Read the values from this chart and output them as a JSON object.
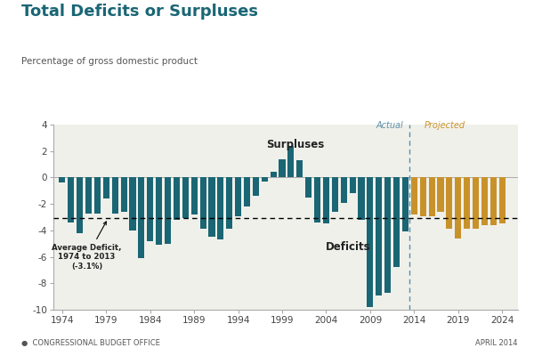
{
  "title": "Total Deficits or Surpluses",
  "subtitle": "Percentage of gross domestic product",
  "footer_left": "●  CONGRESSIONAL BUDGET OFFICE",
  "footer_right": "APRIL 2014",
  "avg_deficit": -3.1,
  "avg_deficit_label": "Average Deficit,\n1974 to 2013\n(-3.1%)",
  "split_year": 2014,
  "actual_label": "Actual",
  "projected_label": "Projected",
  "teal_color": "#1a6674",
  "gold_color": "#c8922a",
  "avg_line_color": "#000000",
  "split_line_color": "#5b8fa8",
  "title_color": "#1a6674",
  "text_color": "#333333",
  "subtitle_color": "#555555",
  "years": [
    1974,
    1975,
    1976,
    1977,
    1978,
    1979,
    1980,
    1981,
    1982,
    1983,
    1984,
    1985,
    1986,
    1987,
    1988,
    1989,
    1990,
    1991,
    1992,
    1993,
    1994,
    1995,
    1996,
    1997,
    1998,
    1999,
    2000,
    2001,
    2002,
    2003,
    2004,
    2005,
    2006,
    2007,
    2008,
    2009,
    2010,
    2011,
    2012,
    2013,
    2014,
    2015,
    2016,
    2017,
    2018,
    2019,
    2020,
    2021,
    2022,
    2023,
    2024
  ],
  "values": [
    -0.4,
    -3.4,
    -4.2,
    -2.7,
    -2.7,
    -1.6,
    -2.7,
    -2.6,
    -4.0,
    -6.1,
    -4.8,
    -5.1,
    -5.0,
    -3.2,
    -3.1,
    -2.8,
    -3.9,
    -4.5,
    -4.7,
    -3.9,
    -2.9,
    -2.2,
    -1.4,
    -0.3,
    0.4,
    1.4,
    2.4,
    1.3,
    -1.5,
    -3.4,
    -3.5,
    -2.6,
    -1.9,
    -1.2,
    -3.2,
    -9.8,
    -8.9,
    -8.7,
    -6.8,
    -4.1,
    -2.8,
    -2.9,
    -2.9,
    -2.6,
    -3.9,
    -4.6,
    -3.9,
    -3.9,
    -3.6,
    -3.6,
    -3.5
  ],
  "ylim": [
    -10,
    4
  ],
  "yticks": [
    -10,
    -8,
    -6,
    -4,
    -2,
    0,
    2,
    4
  ],
  "xticks": [
    1974,
    1979,
    1984,
    1989,
    1994,
    1999,
    2004,
    2009,
    2014,
    2019,
    2024
  ],
  "background_color": "#f0f0eb"
}
